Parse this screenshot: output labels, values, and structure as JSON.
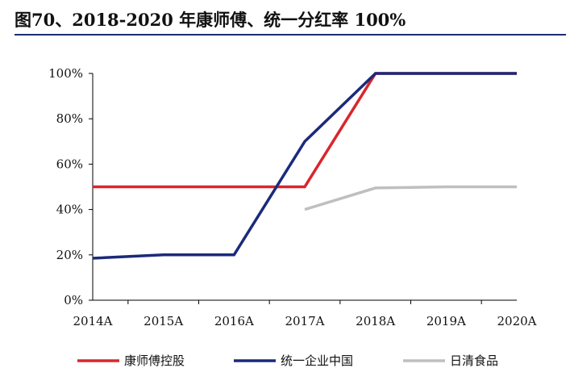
{
  "title": "图70、2018-2020 年康师傅、统一分红率 100%",
  "colors": {
    "title_rule": "#1f2d6e",
    "axis": "#000000"
  },
  "chart_data": {
    "type": "line",
    "title": "",
    "xlabel": "",
    "ylabel": "",
    "categories": [
      "2014A",
      "2015A",
      "2016A",
      "2017A",
      "2018A",
      "2019A",
      "2020A"
    ],
    "ylim": [
      0,
      100
    ],
    "yticks": [
      0,
      20,
      40,
      60,
      80,
      100
    ],
    "ytick_labels": [
      "0%",
      "20%",
      "40%",
      "60%",
      "80%",
      "100%"
    ],
    "grid": false,
    "legend_position": "bottom",
    "series": [
      {
        "name": "康师傅控股",
        "color": "#d9262c",
        "values": [
          50,
          50,
          50,
          50,
          100,
          100,
          100
        ]
      },
      {
        "name": "统一企业中国",
        "color": "#1b2a7a",
        "values": [
          18.5,
          20,
          20,
          70,
          100,
          100,
          100
        ]
      },
      {
        "name": "日清食品",
        "color": "#bfbfbf",
        "values": [
          null,
          null,
          null,
          40,
          49.5,
          50,
          50
        ]
      }
    ]
  }
}
